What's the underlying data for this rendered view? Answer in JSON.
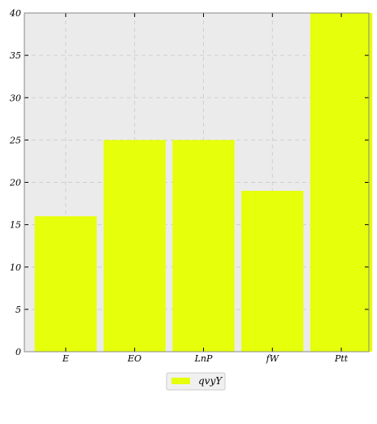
{
  "chart_data": {
    "type": "bar",
    "categories": [
      "E",
      "EO",
      "LnP",
      "fW",
      "Ptt"
    ],
    "series": [
      {
        "name": "qvyY",
        "values": [
          16,
          25,
          25,
          19,
          40
        ]
      }
    ],
    "title": "",
    "xlabel": "",
    "ylabel": "",
    "ylim": [
      0,
      40
    ],
    "yticks": [
      0,
      5,
      10,
      15,
      20,
      25,
      30,
      35,
      40
    ],
    "grid": true,
    "legend_position": "bottom-center",
    "colors": {
      "bar": "#e6ff0a",
      "plot_background": "#ebebeb",
      "grid": "#cfcfcf",
      "axis": "#888888"
    }
  }
}
